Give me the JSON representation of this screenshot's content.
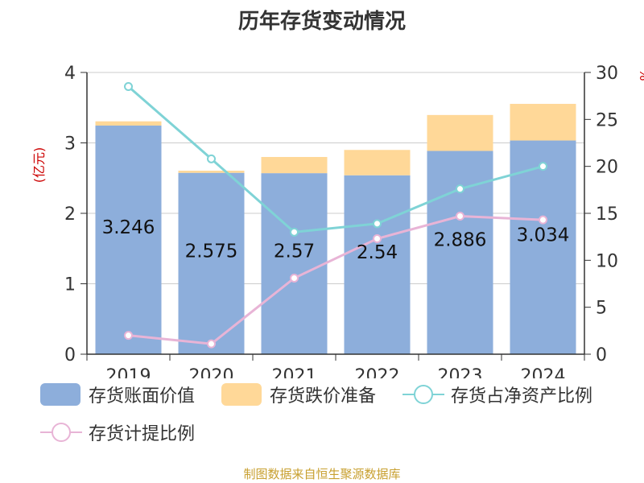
{
  "chart_data": {
    "type": "bar",
    "title": "历年存货变动情况",
    "categories": [
      "2019",
      "2020",
      "2021",
      "2022",
      "2023",
      "2024"
    ],
    "ylabel_left": "(亿元)",
    "ylabel_right": "%",
    "ylim_left": [
      0,
      4
    ],
    "ylim_right": [
      0,
      30
    ],
    "yticks_left": [
      "0",
      "1",
      "2",
      "3",
      "4"
    ],
    "yticks_right": [
      "0",
      "5",
      "10",
      "15",
      "20",
      "25",
      "30"
    ],
    "grid": true,
    "legend_position": "bottom",
    "series": [
      {
        "name": "存货账面价值",
        "kind": "bar",
        "axis": "left",
        "stack": "inv",
        "color": "#8daedb",
        "values": [
          3.246,
          2.575,
          2.57,
          2.54,
          2.886,
          3.034
        ],
        "labels": [
          "3.246",
          "2.575",
          "2.57",
          "2.54",
          "2.886",
          "3.034"
        ]
      },
      {
        "name": "存货跌价准备",
        "kind": "bar",
        "axis": "left",
        "stack": "inv",
        "color": "#ffd898",
        "values": [
          0.06,
          0.03,
          0.23,
          0.36,
          0.51,
          0.52
        ]
      },
      {
        "name": "存货占净资产比例",
        "kind": "line",
        "axis": "right",
        "color": "#7fd3d6",
        "values": [
          28.5,
          20.8,
          13.0,
          13.9,
          17.6,
          20.0
        ]
      },
      {
        "name": "存货计提比例",
        "kind": "line",
        "axis": "right",
        "color": "#e8b4d6",
        "values": [
          2.0,
          1.1,
          8.1,
          12.3,
          14.7,
          14.3
        ]
      }
    ],
    "source": "制图数据来自恒生聚源数据库"
  }
}
